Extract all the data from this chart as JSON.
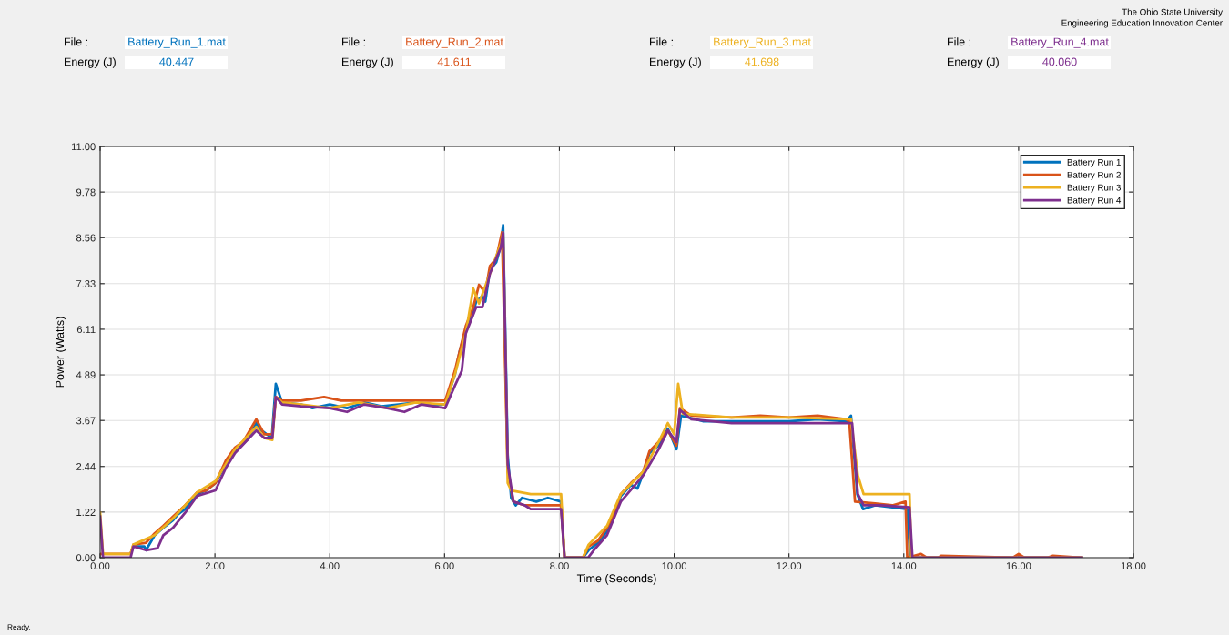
{
  "chart_data": {
    "type": "line",
    "xlabel": "Time (Seconds)",
    "ylabel": "Power (Watts)",
    "annotations": [
      "File :",
      "Battery_Run_1.mat",
      "Energy (J)",
      "40.447",
      "File :",
      "Battery_Run_2.mat",
      "Energy (J)",
      "41.611",
      "File :",
      "Battery_Run_3.mat",
      "Energy (J)",
      "41.698",
      "File :",
      "Battery_Run_4.mat",
      "Energy (J)",
      "40.060",
      "The Ohio State University",
      "Engineering Education Innovation Center",
      "Ready."
    ],
    "xlim": [
      0,
      18
    ],
    "ylim": [
      0,
      11
    ],
    "xticks": [
      {
        "value": 0,
        "label": "0.00"
      },
      {
        "value": 2,
        "label": "2.00"
      },
      {
        "value": 4,
        "label": "4.00"
      },
      {
        "value": 6,
        "label": "6.00"
      },
      {
        "value": 8,
        "label": "8.00"
      },
      {
        "value": 10,
        "label": "10.00"
      },
      {
        "value": 12,
        "label": "12.00"
      },
      {
        "value": 14,
        "label": "14.00"
      },
      {
        "value": 16,
        "label": "16.00"
      },
      {
        "value": 18,
        "label": "18.00"
      }
    ],
    "yticks": [
      {
        "value": 0,
        "label": "0.00"
      },
      {
        "value": 1.22,
        "label": "1.22"
      },
      {
        "value": 2.44,
        "label": "2.44"
      },
      {
        "value": 3.67,
        "label": "3.67"
      },
      {
        "value": 4.89,
        "label": "4.89"
      },
      {
        "value": 6.11,
        "label": "6.11"
      },
      {
        "value": 7.33,
        "label": "7.33"
      },
      {
        "value": 8.56,
        "label": "8.56"
      },
      {
        "value": 9.78,
        "label": "9.78"
      },
      {
        "value": 11,
        "label": "11.00"
      }
    ],
    "grid": true,
    "legend": "top right",
    "series": [
      {
        "name": "Battery Run 1",
        "color": "#0072bd",
        "x": [
          0.53,
          0.58,
          0.77,
          0.8,
          0.95,
          1.1,
          1.27,
          1.35,
          1.48,
          1.69,
          1.85,
          2.01,
          2.19,
          2.35,
          2.49,
          2.59,
          2.72,
          2.8,
          2.86,
          2.99,
          3.06,
          3.17,
          3.5,
          3.7,
          4.0,
          4.3,
          4.6,
          4.9,
          5.2,
          5.5,
          5.8,
          6.01,
          6.18,
          6.26,
          6.37,
          6.48,
          6.55,
          6.66,
          6.71,
          6.79,
          6.9,
          6.98,
          7.02,
          7.1,
          7.16,
          7.24,
          7.35,
          7.6,
          7.8,
          8.03,
          8.09,
          8.41,
          8.51,
          8.67,
          8.83,
          8.93,
          9.07,
          9.25,
          9.36,
          9.46,
          9.57,
          9.73,
          9.89,
          10.04,
          10.12,
          10.5,
          11.0,
          11.5,
          12.0,
          12.5,
          13.0,
          13.08,
          13.19,
          13.29,
          13.5,
          13.8,
          14.06,
          14.11,
          17.1
        ],
        "values": [
          0.1,
          0.3,
          0.3,
          0.2,
          0.6,
          0.8,
          1.0,
          1.15,
          1.3,
          1.7,
          1.8,
          2.0,
          2.5,
          2.85,
          3.05,
          3.2,
          3.6,
          3.4,
          3.35,
          3.2,
          4.65,
          4.15,
          4.1,
          4.0,
          4.1,
          4.0,
          4.15,
          4.05,
          4.1,
          4.15,
          4.1,
          4.1,
          4.9,
          5.5,
          6.1,
          6.45,
          6.85,
          7.0,
          6.85,
          7.7,
          7.9,
          8.35,
          8.9,
          2.75,
          1.6,
          1.4,
          1.6,
          1.5,
          1.6,
          1.5,
          0,
          0,
          0.2,
          0.4,
          0.7,
          1.05,
          1.65,
          1.95,
          1.85,
          2.25,
          2.8,
          3.0,
          3.45,
          2.9,
          3.8,
          3.65,
          3.65,
          3.65,
          3.65,
          3.7,
          3.65,
          3.8,
          1.7,
          1.3,
          1.4,
          1.35,
          1.3,
          0,
          0
        ]
      },
      {
        "name": "Battery Run 2",
        "color": "#d95319",
        "x": [
          0,
          0.53,
          0.58,
          0.8,
          0.95,
          1.1,
          1.27,
          1.48,
          1.69,
          1.85,
          2.01,
          2.19,
          2.35,
          2.49,
          2.72,
          2.86,
          3.0,
          3.06,
          3.17,
          3.5,
          3.9,
          4.2,
          4.5,
          4.8,
          5.2,
          5.5,
          5.8,
          6.01,
          6.18,
          6.37,
          6.5,
          6.6,
          6.71,
          6.79,
          6.9,
          7.0,
          7.1,
          7.2,
          7.4,
          7.6,
          8.03,
          8.09,
          8.41,
          8.51,
          8.67,
          8.83,
          8.93,
          9.07,
          9.25,
          9.46,
          9.57,
          9.73,
          9.89,
          10.04,
          10.1,
          10.3,
          11.0,
          11.5,
          12.0,
          12.5,
          13.0,
          13.05,
          13.15,
          13.5,
          13.8,
          14.03,
          14.06,
          14.3,
          14.4,
          14.6,
          14.65,
          15.9,
          16.0,
          16.1,
          16.5,
          16.6,
          17.1
        ],
        "values": [
          0.1,
          0.1,
          0.35,
          0.4,
          0.65,
          0.85,
          1.1,
          1.4,
          1.75,
          1.8,
          2.0,
          2.6,
          2.95,
          3.1,
          3.7,
          3.3,
          3.3,
          4.3,
          4.2,
          4.2,
          4.3,
          4.2,
          4.2,
          4.2,
          4.2,
          4.2,
          4.2,
          4.2,
          5.0,
          6.2,
          6.7,
          7.3,
          7.1,
          7.8,
          8.0,
          8.7,
          2.3,
          1.5,
          1.4,
          1.4,
          1.4,
          0,
          0,
          0.3,
          0.45,
          0.8,
          1.1,
          1.7,
          2.0,
          2.3,
          2.85,
          3.1,
          3.4,
          3.0,
          4.0,
          3.8,
          3.75,
          3.8,
          3.75,
          3.8,
          3.7,
          3.65,
          1.5,
          1.45,
          1.4,
          1.5,
          0,
          0.1,
          0,
          0,
          0.05,
          0,
          0.1,
          0,
          0,
          0.05,
          0
        ]
      },
      {
        "name": "Battery Run 3",
        "color": "#edb120",
        "x": [
          0,
          0.05,
          0.53,
          0.58,
          0.95,
          1.27,
          1.69,
          2.01,
          2.35,
          2.72,
          2.86,
          3.0,
          3.06,
          3.17,
          3.5,
          4.0,
          4.5,
          5.0,
          5.5,
          6.01,
          6.18,
          6.37,
          6.5,
          6.6,
          6.79,
          6.98,
          7.02,
          7.1,
          7.16,
          7.5,
          8.03,
          8.09,
          8.41,
          8.51,
          8.83,
          9.07,
          9.46,
          9.73,
          9.89,
          10.0,
          10.07,
          10.15,
          11.0,
          12.0,
          13.08,
          13.2,
          13.3,
          14.1,
          14.13,
          17.1
        ],
        "values": [
          1.2,
          0.1,
          0.1,
          0.35,
          0.6,
          1.05,
          1.75,
          2.05,
          2.9,
          3.5,
          3.2,
          3.15,
          4.3,
          4.15,
          4.1,
          4.0,
          4.15,
          4.0,
          4.15,
          4.1,
          4.9,
          6.0,
          7.2,
          6.8,
          7.6,
          8.4,
          8.7,
          2.0,
          1.8,
          1.7,
          1.7,
          0,
          0,
          0.35,
          0.85,
          1.7,
          2.3,
          3.1,
          3.6,
          3.3,
          4.65,
          3.85,
          3.75,
          3.75,
          3.7,
          2.2,
          1.7,
          1.7,
          0,
          0
        ]
      },
      {
        "name": "Battery Run 4",
        "color": "#7e2f8e",
        "x": [
          0,
          0.05,
          0.53,
          0.58,
          0.8,
          1.0,
          1.1,
          1.27,
          1.48,
          1.69,
          2.01,
          2.19,
          2.35,
          2.72,
          2.86,
          3.0,
          3.06,
          3.17,
          3.5,
          4.0,
          4.3,
          4.6,
          5.0,
          5.3,
          5.6,
          6.01,
          6.18,
          6.3,
          6.37,
          6.55,
          6.66,
          6.79,
          6.98,
          7.02,
          7.1,
          7.2,
          7.4,
          7.5,
          8.03,
          8.09,
          8.5,
          8.6,
          8.83,
          9.07,
          9.46,
          9.73,
          9.89,
          10.04,
          10.1,
          10.3,
          11.0,
          12.0,
          13.1,
          13.2,
          13.3,
          13.6,
          14.1,
          14.15,
          17.1
        ],
        "values": [
          1.1,
          0,
          0,
          0.3,
          0.2,
          0.25,
          0.6,
          0.8,
          1.2,
          1.65,
          1.8,
          2.4,
          2.8,
          3.4,
          3.2,
          3.2,
          4.3,
          4.1,
          4.05,
          4.0,
          3.9,
          4.1,
          4.0,
          3.9,
          4.1,
          4.0,
          4.6,
          5.0,
          6.0,
          6.7,
          6.7,
          7.6,
          8.3,
          8.7,
          2.5,
          1.5,
          1.4,
          1.3,
          1.3,
          0,
          0,
          0.2,
          0.6,
          1.5,
          2.2,
          2.9,
          3.4,
          3.1,
          3.95,
          3.7,
          3.6,
          3.6,
          3.6,
          1.7,
          1.4,
          1.4,
          1.35,
          0,
          0
        ]
      }
    ]
  }
}
